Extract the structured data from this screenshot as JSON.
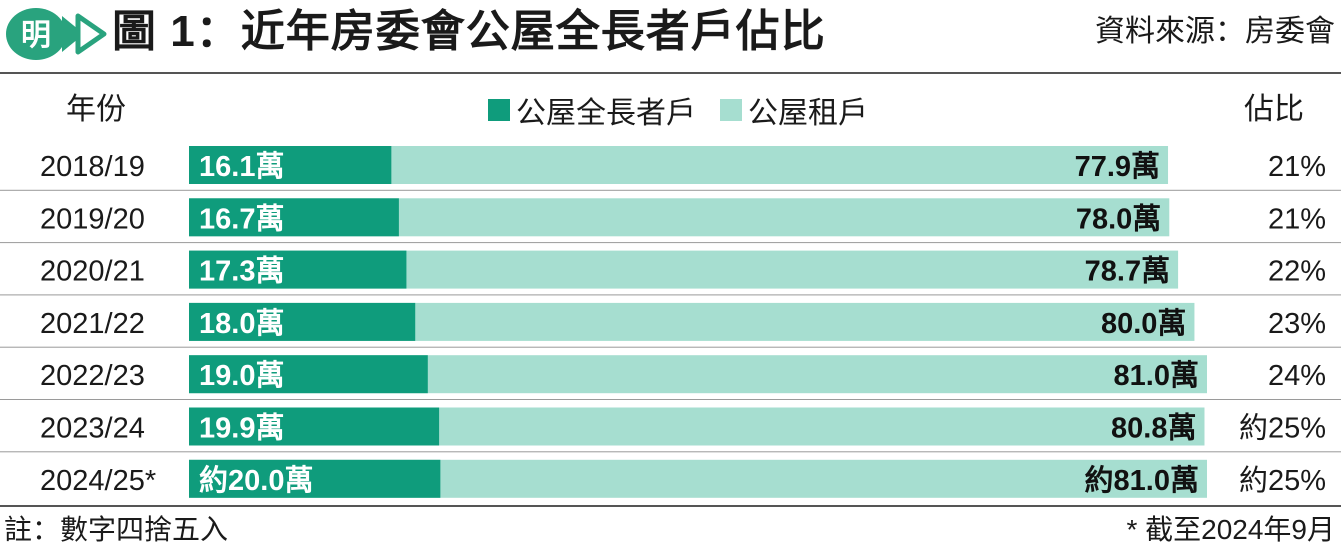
{
  "header": {
    "logo_text": "明",
    "title": "圖 1：近年房委會公屋全長者戶佔比",
    "source": "資料來源：房委會"
  },
  "columns": {
    "year": "年份",
    "share": "佔比"
  },
  "colors": {
    "elderly": "#0f9c7c",
    "tenants": "#a6ded0",
    "logo": "#29a37e"
  },
  "chart_data": {
    "type": "bar",
    "orientation": "horizontal",
    "categories": [
      "2018/19",
      "2019/20",
      "2020/21",
      "2021/22",
      "2022/23",
      "2023/24",
      "2024/25*"
    ],
    "series": [
      {
        "name": "公屋全長者戶",
        "values": [
          16.1,
          16.7,
          17.3,
          18.0,
          19.0,
          19.9,
          20.0
        ]
      },
      {
        "name": "公屋租戶",
        "values": [
          77.9,
          78.0,
          78.7,
          80.0,
          81.0,
          80.8,
          81.0
        ]
      }
    ],
    "labels_elderly": [
      "16.1萬",
      "16.7萬",
      "17.3萬",
      "18.0萬",
      "19.0萬",
      "19.9萬",
      "約20.0萬"
    ],
    "labels_tenants": [
      "77.9萬",
      "78.0萬",
      "78.7萬",
      "80.0萬",
      "81.0萬",
      "80.8萬",
      "約81.0萬"
    ],
    "shares": [
      "21%",
      "21%",
      "22%",
      "23%",
      "24%",
      "約25%",
      "約25%"
    ],
    "legend_position": "top-center",
    "xlim": [
      0,
      81.0
    ]
  },
  "footer": {
    "note": "註：數字四捨五入",
    "asof": "* 截至2024年9月"
  }
}
